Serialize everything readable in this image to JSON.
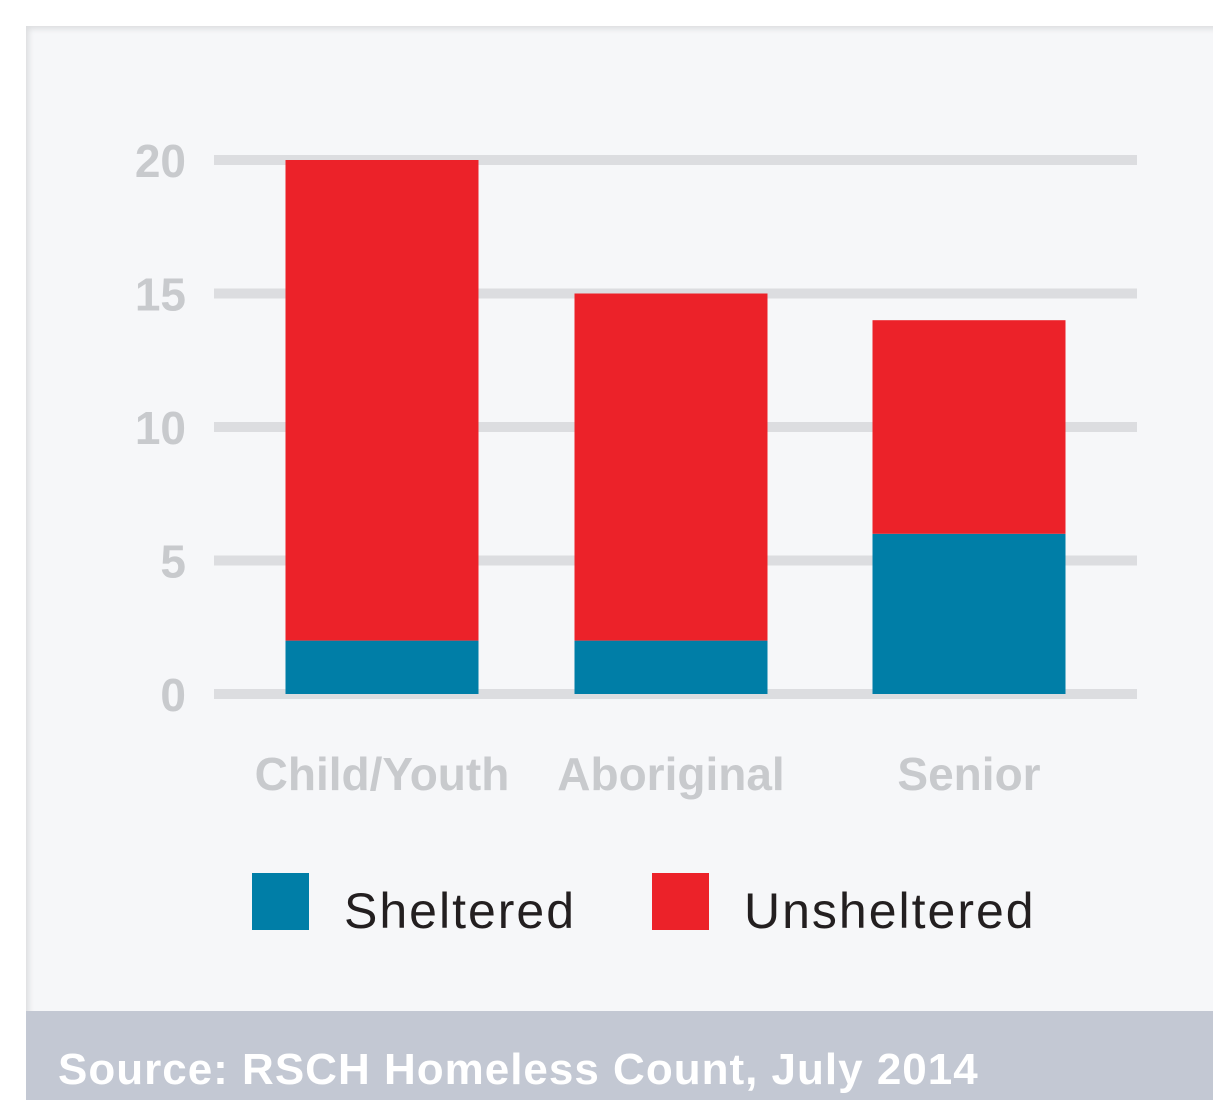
{
  "chart_data": {
    "type": "bar",
    "stacked": true,
    "categories": [
      "Child/Youth",
      "Aboriginal",
      "Senior"
    ],
    "series": [
      {
        "name": "Sheltered",
        "values": [
          2,
          2,
          6
        ],
        "color": "#007ea7"
      },
      {
        "name": "Unsheltered",
        "values": [
          18,
          13,
          8
        ],
        "color": "#ec2229"
      }
    ],
    "ylim": [
      0,
      20
    ],
    "yticks": [
      0,
      5,
      10,
      15,
      20
    ],
    "grid": true,
    "legend_position": "bottom",
    "title": "",
    "xlabel": "",
    "ylabel": ""
  },
  "colors": {
    "panel_background": "#f6f7f9",
    "gridline": "#dcdde0",
    "axis_text": "#c8cacd",
    "legend_text": "#231f20",
    "source_bar": "#c3c8d3",
    "source_text": "#ffffff"
  },
  "source": "Source: RSCH Homeless Count, July 2014"
}
